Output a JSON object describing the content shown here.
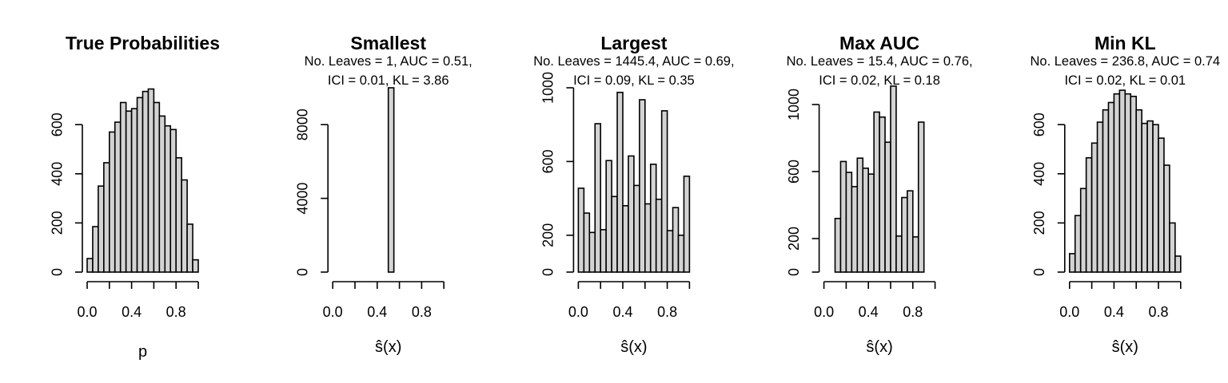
{
  "chart_data": [
    {
      "type": "bar",
      "title": "True Probabilities",
      "subtitle": [],
      "xlabel": "p",
      "ylabel": "",
      "xlim": [
        0,
        1
      ],
      "xticks": [
        "0.0",
        "0.4",
        "0.8"
      ],
      "ylim": [
        0,
        750
      ],
      "yticks": [
        "0",
        "200",
        "400",
        "600"
      ],
      "bin_width": 0.05,
      "bins_start": 0.0,
      "values": [
        55,
        185,
        350,
        445,
        570,
        610,
        690,
        655,
        665,
        710,
        735,
        745,
        690,
        635,
        595,
        580,
        465,
        375,
        195,
        50
      ]
    },
    {
      "type": "bar",
      "title": "Smallest",
      "subtitle": [
        "No. Leaves = 1, AUC = 0.51,",
        "ICI = 0.01, KL = 3.86"
      ],
      "xlabel": "ŝ(x)",
      "ylabel": "",
      "xlim": [
        0,
        1
      ],
      "xticks": [
        "0.0",
        "0.4",
        "0.8"
      ],
      "ylim": [
        0,
        10000
      ],
      "yticks": [
        "0",
        "4000",
        "8000"
      ],
      "bin_width": 0.05,
      "bins_start": 0.0,
      "values": [
        0,
        0,
        0,
        0,
        0,
        0,
        0,
        0,
        0,
        0,
        10000,
        0,
        0,
        0,
        0,
        0,
        0,
        0,
        0,
        0
      ]
    },
    {
      "type": "bar",
      "title": "Largest",
      "subtitle": [
        "No. Leaves = 1445.4, AUC = 0.69,",
        "ICI = 0.09, KL = 0.35"
      ],
      "xlabel": "ŝ(x)",
      "ylabel": "",
      "xlim": [
        0,
        1
      ],
      "xticks": [
        "0.0",
        "0.4",
        "0.8"
      ],
      "ylim": [
        0,
        1000
      ],
      "yticks": [
        "0",
        "200",
        "600",
        "1000"
      ],
      "bin_width": 0.05,
      "bins_start": 0.0,
      "values": [
        455,
        320,
        215,
        805,
        230,
        605,
        410,
        975,
        360,
        630,
        470,
        935,
        370,
        585,
        395,
        875,
        225,
        350,
        200,
        520
      ]
    },
    {
      "type": "bar",
      "title": "Max AUC",
      "subtitle": [
        "No. Leaves = 15.4, AUC = 0.76,",
        "ICI = 0.02, KL = 0.18"
      ],
      "xlabel": "ŝ(x)",
      "ylabel": "",
      "xlim": [
        0,
        1
      ],
      "xticks": [
        "0.0",
        "0.4",
        "0.8"
      ],
      "ylim": [
        0,
        1100
      ],
      "yticks": [
        "0",
        "200",
        "600",
        "1000"
      ],
      "bin_width": 0.05,
      "bins_start": 0.0,
      "values": [
        0,
        0,
        320,
        660,
        595,
        510,
        680,
        620,
        585,
        955,
        925,
        775,
        1110,
        215,
        445,
        485,
        210,
        895,
        0,
        0
      ]
    },
    {
      "type": "bar",
      "title": "Min KL",
      "subtitle": [
        "No. Leaves = 236.8, AUC = 0.74",
        "ICI = 0.02, KL = 0.01"
      ],
      "xlabel": "ŝ(x)",
      "ylabel": "",
      "xlim": [
        0,
        1
      ],
      "xticks": [
        "0.0",
        "0.4",
        "0.8"
      ],
      "ylim": [
        0,
        750
      ],
      "yticks": [
        "0",
        "200",
        "400",
        "600"
      ],
      "bin_width": 0.05,
      "bins_start": 0.0,
      "values": [
        75,
        230,
        340,
        465,
        525,
        610,
        660,
        690,
        725,
        740,
        725,
        715,
        660,
        605,
        615,
        600,
        545,
        435,
        200,
        65
      ]
    }
  ]
}
